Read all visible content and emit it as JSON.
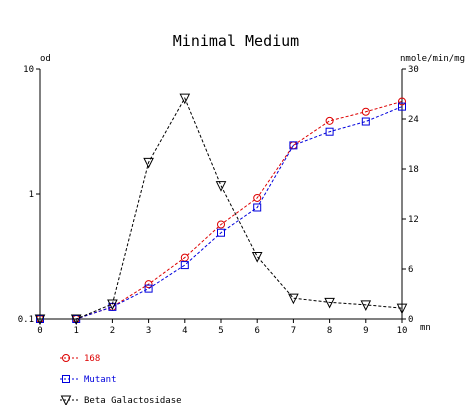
{
  "chart_data": {
    "type": "line",
    "title": "Minimal Medium",
    "x": [
      0,
      1,
      2,
      3,
      4,
      5,
      6,
      7,
      8,
      9,
      10
    ],
    "x_tick_labels": [
      "0",
      "1",
      "2",
      "3",
      "4",
      "5",
      "6",
      "7",
      "8",
      "9",
      "10"
    ],
    "xlabel": "mn",
    "xlim": [
      0,
      10
    ],
    "left_axis": {
      "label": "od",
      "scale": "log",
      "lim": [
        0.1,
        10
      ],
      "tick_values": [
        0.1,
        1,
        10
      ],
      "tick_labels": [
        "0.1",
        "1",
        "10"
      ]
    },
    "right_axis": {
      "label": "nmole/min/mg",
      "scale": "linear",
      "lim": [
        0,
        30
      ],
      "tick_values": [
        0,
        6,
        12,
        18,
        24,
        30
      ],
      "tick_labels": [
        "0",
        "6",
        "12",
        "18",
        "24",
        "30"
      ]
    },
    "grid": false,
    "legend_position": "bottom-left",
    "series": [
      {
        "name": "168",
        "axis": "left",
        "marker": "circle",
        "color": "#dd0000",
        "values": [
          0.1,
          0.1,
          0.125,
          0.19,
          0.31,
          0.57,
          0.93,
          2.45,
          3.85,
          4.55,
          5.5
        ]
      },
      {
        "name": "Mutant",
        "axis": "left",
        "marker": "square",
        "color": "#0000dd",
        "values": [
          0.1,
          0.1,
          0.125,
          0.175,
          0.27,
          0.49,
          0.78,
          2.45,
          3.15,
          3.8,
          5.0
        ]
      },
      {
        "name": "Beta Galactosidase",
        "axis": "right",
        "marker": "triangle-down",
        "color": "#000000",
        "values": [
          0,
          0,
          1.8,
          18.8,
          26.5,
          16,
          7.5,
          2.5,
          2,
          1.7,
          1.3
        ]
      }
    ]
  }
}
